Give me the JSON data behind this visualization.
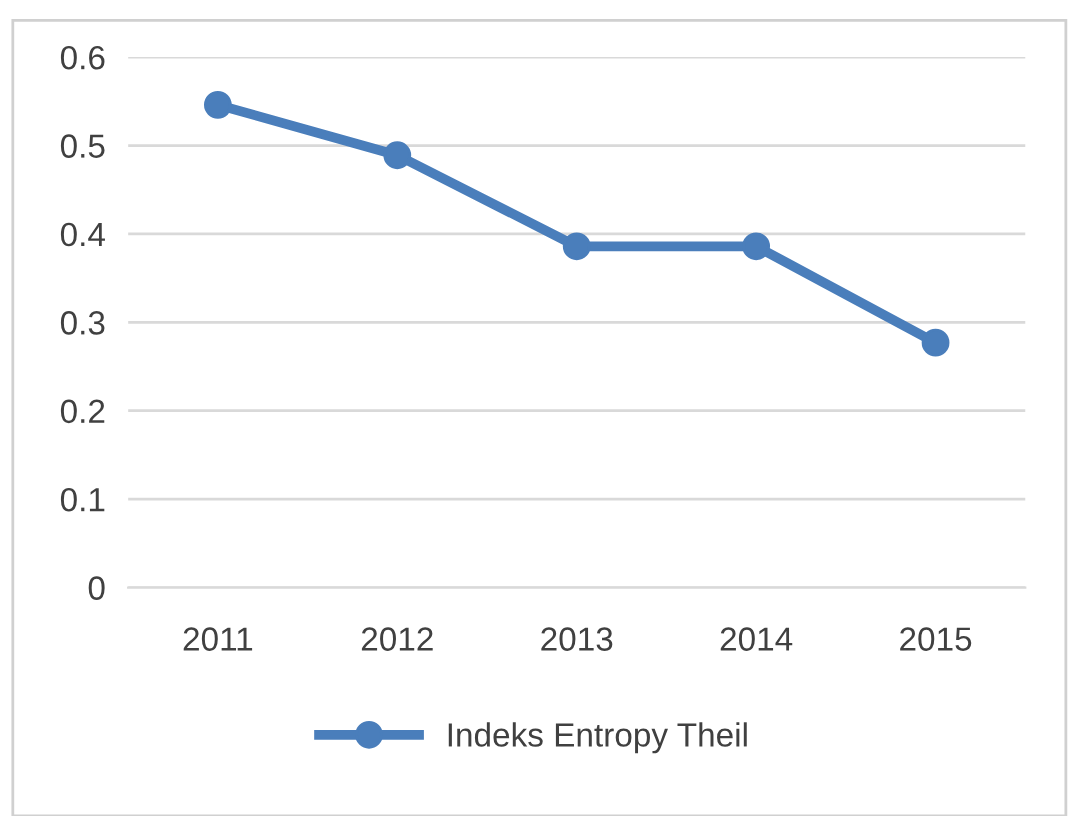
{
  "chart_data": {
    "type": "line",
    "categories": [
      "2011",
      "2012",
      "2013",
      "2014",
      "2015"
    ],
    "series": [
      {
        "name": "Indeks Entropy Theil",
        "color": "#4a7ebb",
        "values": [
          0.546,
          0.489,
          0.386,
          0.386,
          0.277
        ]
      }
    ],
    "ylim": [
      0,
      0.6
    ],
    "yticks": [
      0,
      0.1,
      0.2,
      0.3,
      0.4,
      0.5,
      0.6
    ],
    "grid": "y",
    "legend": "bottom",
    "marker": "circle",
    "line_style": "solid"
  }
}
